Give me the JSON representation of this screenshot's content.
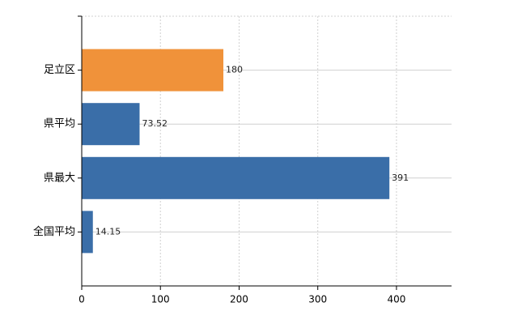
{
  "chart_data": {
    "type": "barh",
    "categories": [
      "足立区",
      "県平均",
      "県最大",
      "全国平均"
    ],
    "values": [
      180,
      73.52,
      391,
      14.15
    ],
    "colors": [
      "#f0923a",
      "#3a6ea8",
      "#3a6ea8",
      "#3a6ea8"
    ],
    "xlim": [
      0,
      470
    ],
    "xticks": [
      0,
      100,
      200,
      300,
      400
    ],
    "grid": true
  }
}
